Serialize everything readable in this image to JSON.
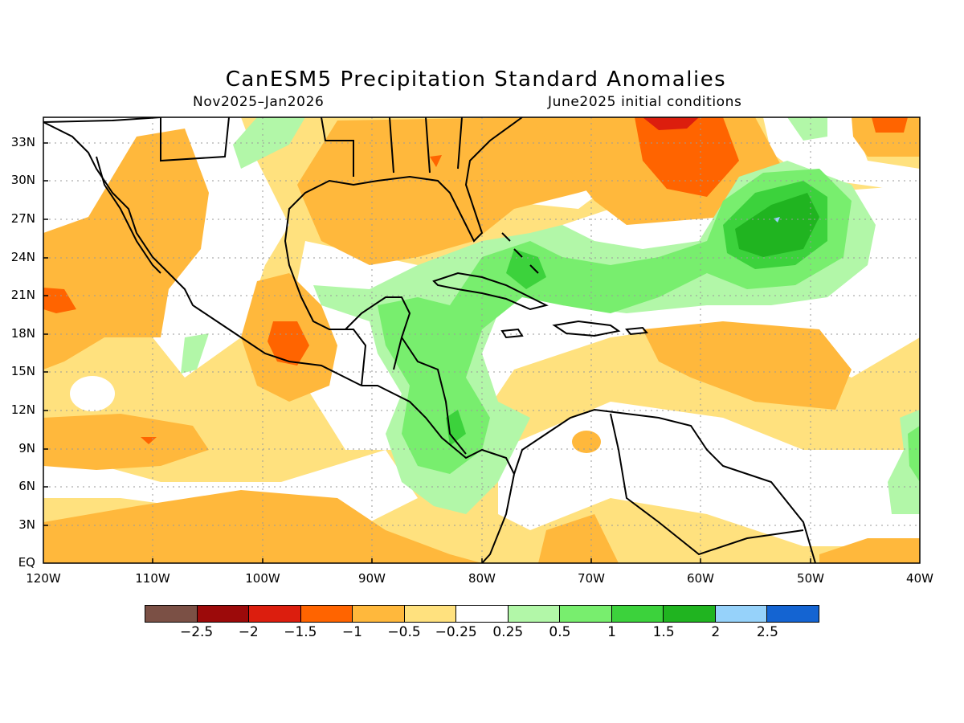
{
  "title": "CanESM5 Precipitation Standard Anomalies",
  "subtitle_left": "Nov2025–Jan2026",
  "subtitle_right": "June2025 initial conditions",
  "lat_labels": [
    "33N",
    "30N",
    "27N",
    "24N",
    "21N",
    "18N",
    "15N",
    "12N",
    "9N",
    "6N",
    "3N",
    "EQ"
  ],
  "lon_labels": [
    "120W",
    "110W",
    "100W",
    "90W",
    "80W",
    "70W",
    "60W",
    "50W",
    "40W"
  ],
  "colorbar": {
    "colors": [
      "#7b5045",
      "#9c0a0a",
      "#dc1e0e",
      "#ff6400",
      "#ffb83c",
      "#ffe17e",
      "#ffffff",
      "#b2f7a8",
      "#78ee6e",
      "#3cd23c",
      "#20b420",
      "#96d2fa",
      "#1464d2"
    ],
    "labels": [
      "−2.5",
      "−2",
      "−1.5",
      "−1",
      "−0.5",
      "−0.25",
      "0.25",
      "0.5",
      "1",
      "1.5",
      "2",
      "2.5"
    ]
  },
  "palette": {
    "land_outline": "#000000",
    "grid": "#9a9a9a"
  }
}
